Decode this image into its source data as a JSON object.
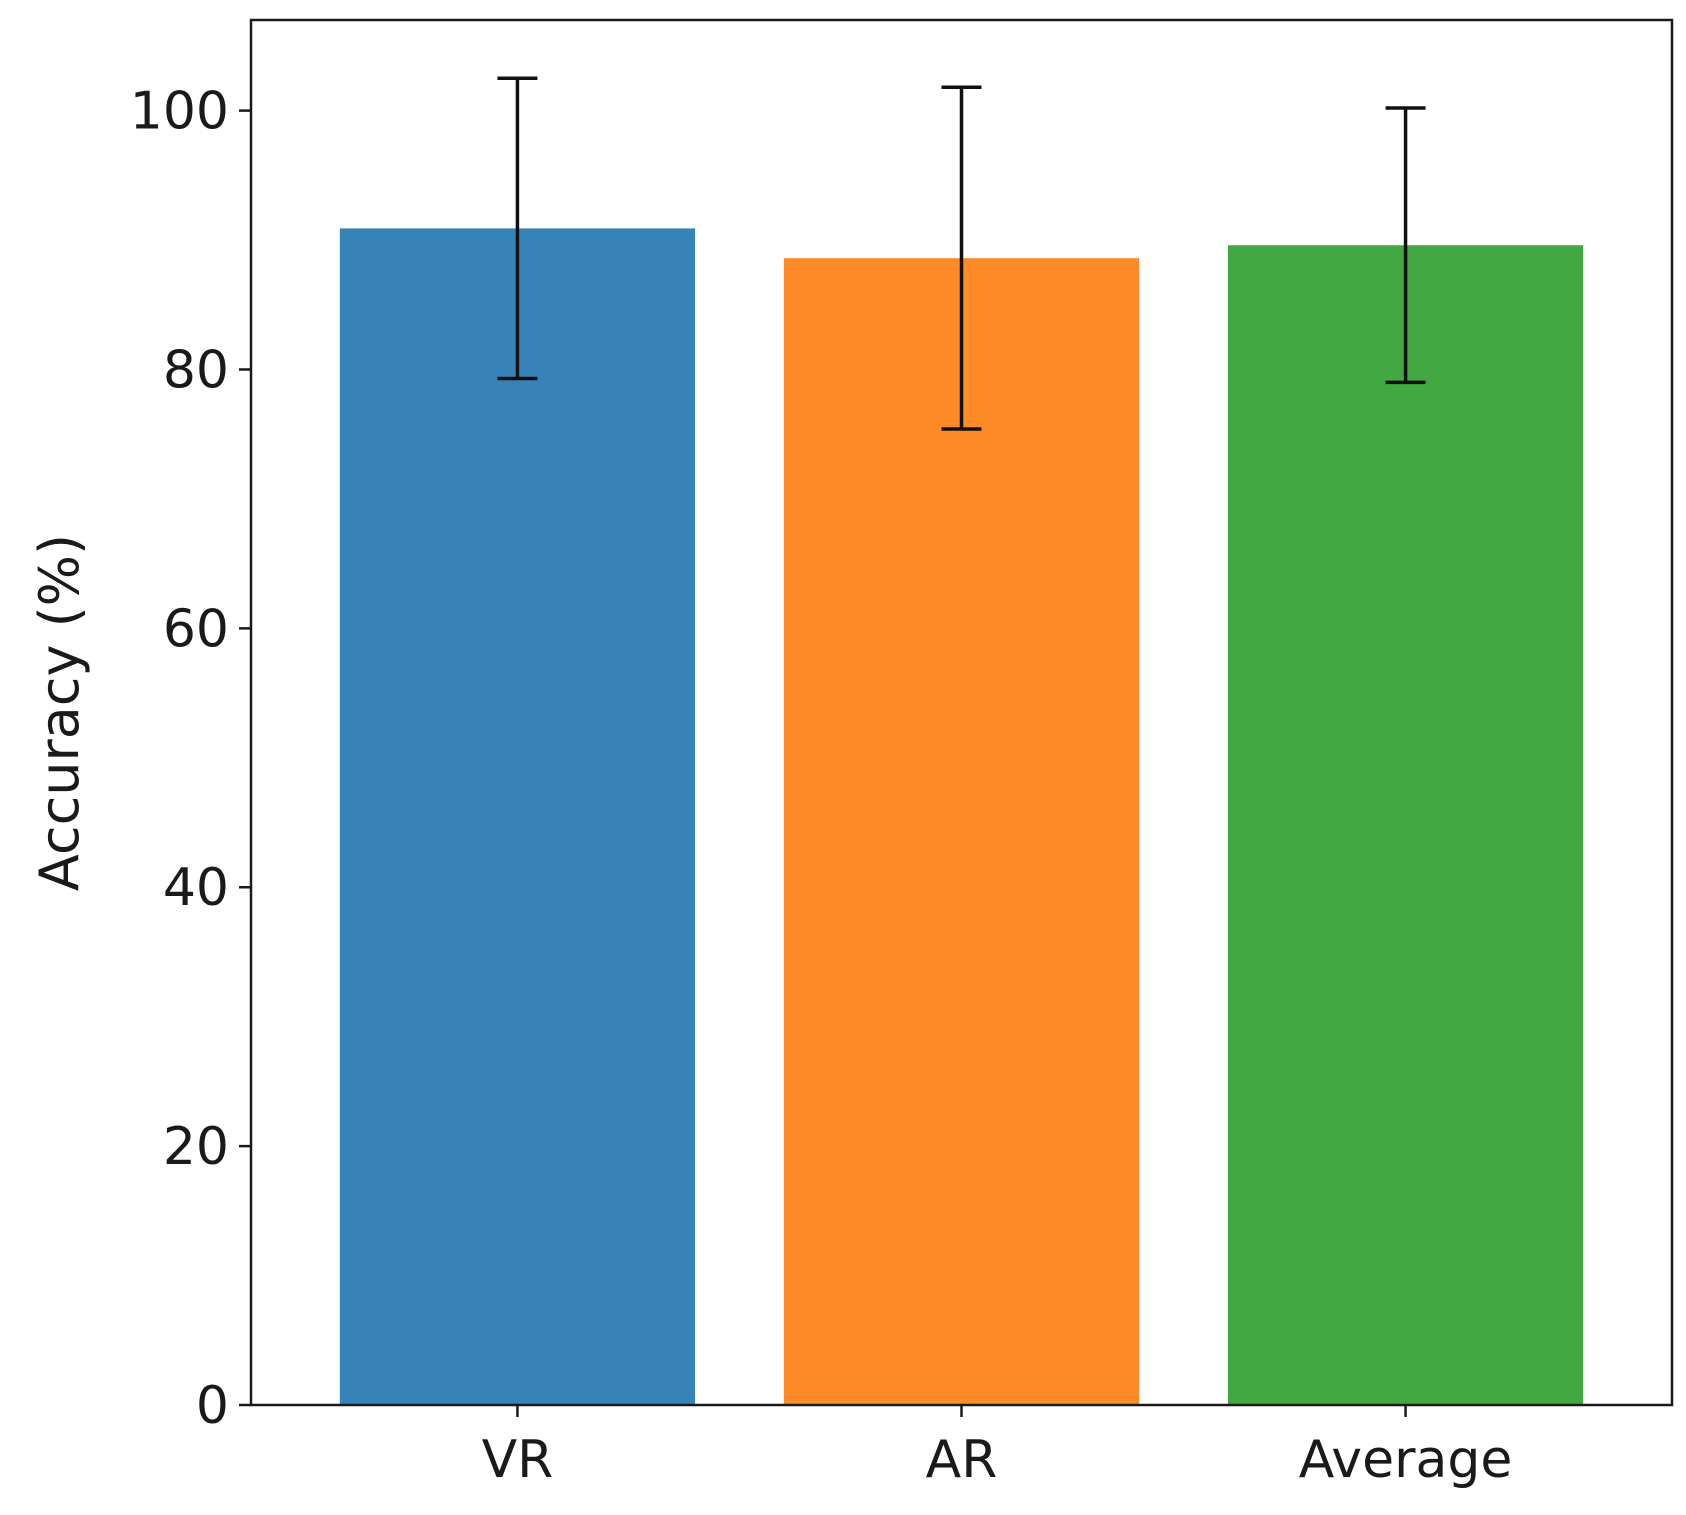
{
  "chart_data": {
    "type": "bar",
    "title": "",
    "xlabel": "",
    "ylabel": "Accuracy (%)",
    "categories": [
      "VR",
      "AR",
      "Average"
    ],
    "values": [
      90.9,
      88.6,
      89.6
    ],
    "error": [
      11.6,
      13.2,
      10.6
    ],
    "colors": [
      "#3782b9",
      "#fe8a28",
      "#41a842"
    ],
    "ylim": [
      0,
      107
    ],
    "yticks": [
      0,
      20,
      40,
      60,
      80,
      100
    ],
    "grid": false,
    "legend": "none"
  }
}
